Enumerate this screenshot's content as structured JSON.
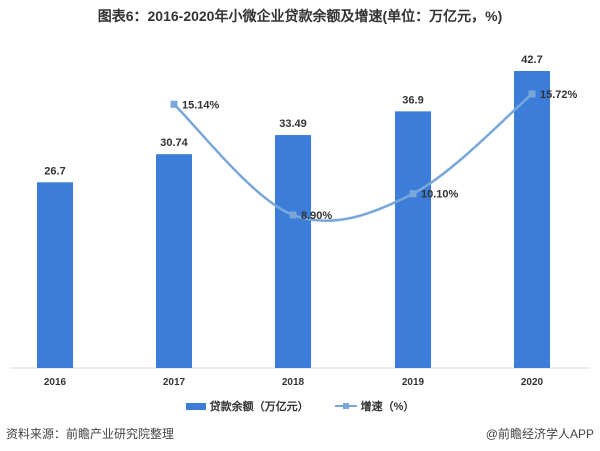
{
  "title": "图表6：2016-2020年小微企业贷款余额及增速(单位：万亿元，%)",
  "legend": {
    "bar_label": "贷款余额（万亿元）",
    "line_label": "增速（%）"
  },
  "footer": {
    "source": "资料来源：前瞻产业研究院整理",
    "credit": "@前瞻经济学人APP"
  },
  "colors": {
    "bar": "#3b7dd8",
    "line": "#7aa7d9",
    "axis": "#d9d9d9"
  },
  "chart_data": {
    "type": "bar+line",
    "title": "图表6：2016-2020年小微企业贷款余额及增速(单位：万亿元，%)",
    "categories": [
      "2016",
      "2017",
      "2018",
      "2019",
      "2020"
    ],
    "series": [
      {
        "name": "贷款余额（万亿元）",
        "type": "bar",
        "values": [
          26.7,
          30.74,
          33.49,
          36.9,
          42.7
        ],
        "labels": [
          "26.7",
          "30.74",
          "33.49",
          "36.9",
          "42.7"
        ]
      },
      {
        "name": "增速（%）",
        "type": "line",
        "values": [
          null,
          15.14,
          8.9,
          10.1,
          15.72
        ],
        "labels": [
          "",
          "15.14%",
          "8.90%",
          "10.10%",
          "15.72%"
        ]
      }
    ],
    "xlabel": "",
    "ylabel": "",
    "legend_position": "bottom",
    "grid": false
  }
}
